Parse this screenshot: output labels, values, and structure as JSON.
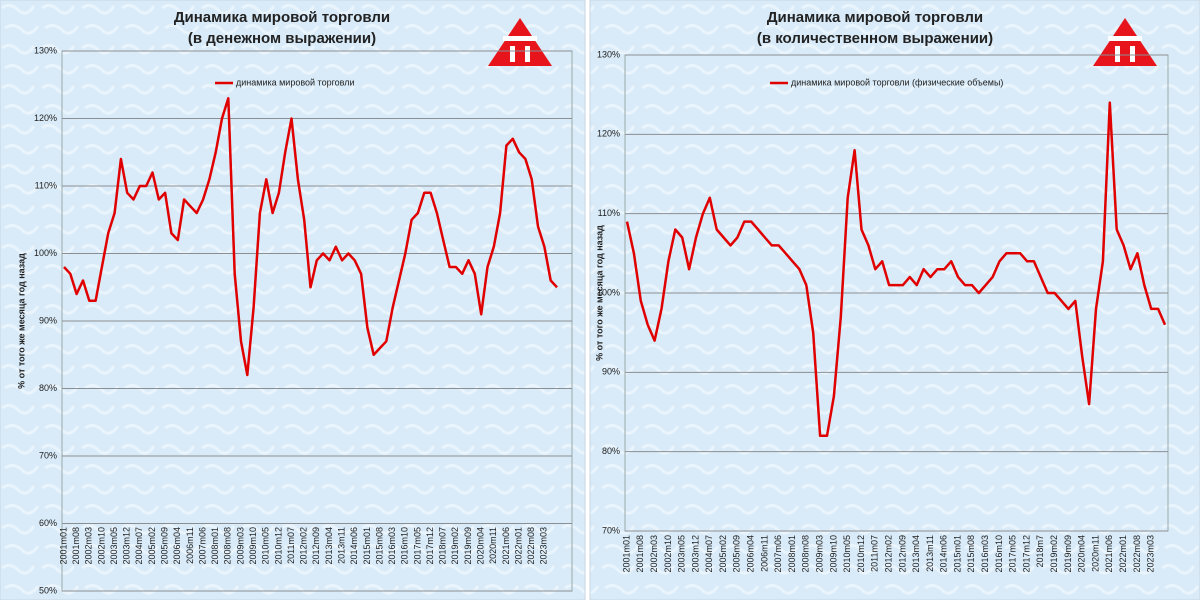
{
  "chart_data": [
    {
      "type": "line",
      "title": "Динамика мировой торговли",
      "subtitle": "(в денежном выражении)",
      "y_label": "% от того же месяца год назад",
      "categories": [
        "2001m01",
        null,
        "2001m08",
        null,
        "2002m03",
        null,
        "2002m10",
        null,
        "2003m05",
        null,
        "2003m12",
        null,
        "2004m07",
        null,
        "2005m02",
        null,
        "2005m09",
        null,
        "2006m04",
        null,
        "2006m11",
        null,
        "2007m06",
        null,
        "2008m01",
        null,
        "2008m08",
        null,
        "2009m03",
        null,
        "2009m10",
        null,
        "2010m05",
        null,
        "2010m12",
        null,
        "2011m07",
        null,
        "2012m02",
        null,
        "2012m09",
        null,
        "2013m04",
        null,
        "2013m11",
        null,
        "2014m06",
        null,
        "2015m01",
        null,
        "2015m08",
        null,
        "2016m03",
        null,
        "2016m10",
        null,
        "2017m05",
        null,
        "2017m12",
        null,
        "2018m07",
        null,
        "2019m02",
        null,
        "2019m09",
        null,
        "2020m04",
        null,
        "2020m11",
        null,
        "2021m06",
        null,
        "2022m01",
        null,
        "2022m08",
        null,
        "2023m03",
        null,
        null
      ],
      "series": [
        {
          "name": "динамика мировой торговли",
          "color": "#e00000",
          "values": [
            98,
            97,
            94,
            96,
            93,
            93,
            98,
            103,
            106,
            114,
            109,
            108,
            110,
            110,
            112,
            108,
            109,
            103,
            102,
            108,
            107,
            106,
            108,
            111,
            115,
            120,
            123,
            97,
            87,
            82,
            92,
            106,
            111,
            106,
            109,
            115,
            120,
            111,
            105,
            95,
            99,
            100,
            99,
            101,
            99,
            100,
            99,
            97,
            89,
            85,
            86,
            87,
            92,
            96,
            100,
            105,
            106,
            109,
            109,
            106,
            102,
            98,
            98,
            97,
            99,
            97,
            91,
            98,
            101,
            106,
            116,
            117,
            115,
            114,
            111,
            104,
            101,
            96,
            95
          ]
        }
      ],
      "ylim": [
        50,
        130
      ],
      "yticks": [
        {
          "value": 50,
          "label": "50%"
        },
        {
          "value": 60,
          "label": "60%"
        },
        {
          "value": 70,
          "label": "70%"
        },
        {
          "value": 80,
          "label": "80%"
        },
        {
          "value": 90,
          "label": "90%"
        },
        {
          "value": 100,
          "label": "100%"
        },
        {
          "value": 110,
          "label": "110%"
        },
        {
          "value": 120,
          "label": "120%"
        },
        {
          "value": 130,
          "label": "130%"
        }
      ],
      "grid": true
    },
    {
      "type": "line",
      "title": "Динамика мировой торговли",
      "subtitle": "(в количественном выражении)",
      "y_label": "% от того же месяца год назад",
      "categories": [
        "2001m01",
        null,
        "2001m08",
        null,
        "2002m03",
        null,
        "2002m10",
        null,
        "2003m05",
        null,
        "2003m12",
        null,
        "2004m07",
        null,
        "2005m02",
        null,
        "2005m09",
        null,
        "2006m04",
        null,
        "2006m11",
        null,
        "2007m06",
        null,
        "2008m01",
        null,
        "2008m08",
        null,
        "2009m03",
        null,
        "2009m10",
        null,
        "2010m05",
        null,
        "2010m12",
        null,
        "2011m07",
        null,
        "2012m02",
        null,
        "2012m09",
        null,
        "2013m04",
        null,
        "2013m11",
        null,
        "2014m06",
        null,
        "2015m01",
        null,
        "2015m08",
        null,
        "2016m03",
        null,
        "2016m10",
        null,
        "2017m05",
        null,
        "2017m12",
        null,
        "2018m7",
        null,
        "2019m02",
        null,
        "2019m09",
        null,
        "2020m04",
        null,
        "2020m11",
        null,
        "2021m06",
        null,
        "2022m01",
        null,
        "2022m08",
        null,
        "2023m03",
        null,
        null
      ],
      "series": [
        {
          "name": "динамика мировой торговли (физические объемы)",
          "color": "#e00000",
          "values": [
            109,
            105,
            99,
            96,
            94,
            98,
            104,
            108,
            107,
            103,
            107,
            110,
            112,
            108,
            107,
            106,
            107,
            109,
            109,
            108,
            107,
            106,
            106,
            105,
            104,
            103,
            101,
            95,
            82,
            82,
            87,
            97,
            112,
            118,
            108,
            106,
            103,
            104,
            101,
            101,
            101,
            102,
            101,
            103,
            102,
            103,
            103,
            104,
            102,
            101,
            101,
            100,
            101,
            102,
            104,
            105,
            105,
            105,
            104,
            104,
            102,
            100,
            100,
            99,
            98,
            99,
            92,
            86,
            98,
            104,
            124,
            108,
            106,
            103,
            105,
            101,
            98,
            98,
            96
          ]
        }
      ],
      "ylim": [
        70,
        130
      ],
      "yticks": [
        {
          "value": 70,
          "label": "70%"
        },
        {
          "value": 80,
          "label": "80%"
        },
        {
          "value": 90,
          "label": "90%"
        },
        {
          "value": 100,
          "label": "100%"
        },
        {
          "value": 110,
          "label": "110%"
        },
        {
          "value": 120,
          "label": "120%"
        },
        {
          "value": 130,
          "label": "130%"
        }
      ],
      "grid": true
    }
  ]
}
